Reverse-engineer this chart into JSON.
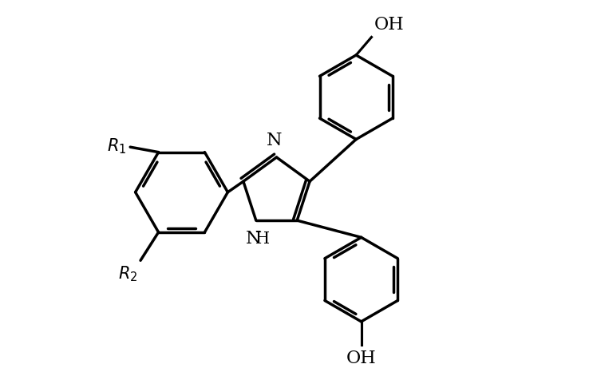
{
  "background_color": "#ffffff",
  "line_color": "#000000",
  "line_width": 2.5,
  "font_size": 15,
  "figsize": [
    7.38,
    4.66
  ],
  "dpi": 100,
  "xlim": [
    0,
    10
  ],
  "ylim": [
    0,
    7
  ]
}
